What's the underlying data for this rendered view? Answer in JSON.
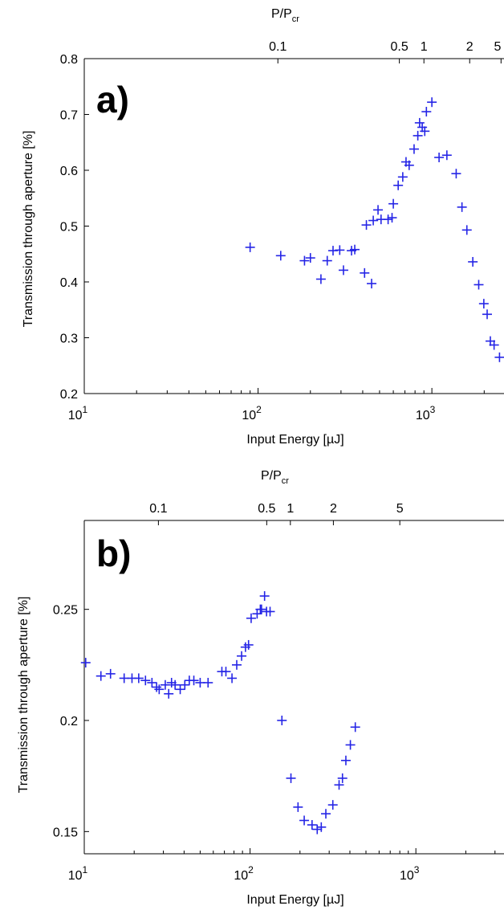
{
  "colors": {
    "marker": "#2525e6",
    "axis": "#000000",
    "background": "#ffffff"
  },
  "chart_data": [
    {
      "type": "scatter",
      "panel_label": "a)",
      "xlabel": "Input Energy [µJ]",
      "ylabel": "Transmission through aperture [%]",
      "top_axis_label_main": "P/P",
      "top_axis_label_sub": "cr",
      "x_scale": "log",
      "xlim": [
        10,
        2600
      ],
      "ylim": [
        0.2,
        0.8
      ],
      "x_ticks": [
        {
          "value": 10,
          "base": "10",
          "exp": "1"
        },
        {
          "value": 100,
          "base": "10",
          "exp": "2"
        },
        {
          "value": 1000,
          "base": "10",
          "exp": "3"
        }
      ],
      "y_ticks": [
        "0.2",
        "0.3",
        "0.4",
        "0.5",
        "0.6",
        "0.7",
        "0.8"
      ],
      "top_ticks": [
        {
          "label": "0.1",
          "energy": 130
        },
        {
          "label": "0.5",
          "energy": 650
        },
        {
          "label": "1",
          "energy": 900
        },
        {
          "label": "2",
          "energy": 1650
        },
        {
          "label": "5",
          "energy": 2500
        }
      ],
      "grid": false,
      "series": [
        {
          "marker": "+",
          "points": [
            [
              90,
              0.462
            ],
            [
              135,
              0.447
            ],
            [
              185,
              0.438
            ],
            [
              200,
              0.443
            ],
            [
              230,
              0.405
            ],
            [
              250,
              0.438
            ],
            [
              270,
              0.456
            ],
            [
              295,
              0.457
            ],
            [
              310,
              0.421
            ],
            [
              345,
              0.456
            ],
            [
              360,
              0.458
            ],
            [
              410,
              0.416
            ],
            [
              450,
              0.397
            ],
            [
              420,
              0.502
            ],
            [
              460,
              0.51
            ],
            [
              490,
              0.529
            ],
            [
              510,
              0.512
            ],
            [
              560,
              0.512
            ],
            [
              590,
              0.515
            ],
            [
              600,
              0.54
            ],
            [
              640,
              0.573
            ],
            [
              680,
              0.588
            ],
            [
              710,
              0.615
            ],
            [
              740,
              0.609
            ],
            [
              790,
              0.638
            ],
            [
              830,
              0.662
            ],
            [
              850,
              0.685
            ],
            [
              880,
              0.677
            ],
            [
              910,
              0.67
            ],
            [
              930,
              0.705
            ],
            [
              1000,
              0.722
            ],
            [
              1100,
              0.623
            ],
            [
              1220,
              0.627
            ],
            [
              1380,
              0.594
            ],
            [
              1490,
              0.534
            ],
            [
              1590,
              0.493
            ],
            [
              1720,
              0.436
            ],
            [
              1860,
              0.395
            ],
            [
              1990,
              0.361
            ],
            [
              2080,
              0.342
            ],
            [
              2170,
              0.294
            ],
            [
              2280,
              0.287
            ],
            [
              2450,
              0.265
            ]
          ]
        }
      ]
    },
    {
      "type": "scatter",
      "panel_label": "b)",
      "xlabel": "Input Energy [µJ]",
      "ylabel": "Transmission through aperture [%]",
      "top_axis_label_main": "P/P",
      "top_axis_label_sub": "cr",
      "x_scale": "log",
      "xlim": [
        10,
        3400
      ],
      "ylim": [
        0.14,
        0.29
      ],
      "x_ticks": [
        {
          "value": 10,
          "base": "10",
          "exp": "1"
        },
        {
          "value": 100,
          "base": "10",
          "exp": "2"
        },
        {
          "value": 1000,
          "base": "10",
          "exp": "3"
        }
      ],
      "y_ticks": [
        "0.15",
        "0.2",
        "0.25"
      ],
      "top_ticks": [
        {
          "label": "0.1",
          "energy": 28
        },
        {
          "label": "0.5",
          "energy": 126
        },
        {
          "label": "1",
          "energy": 175
        },
        {
          "label": "2",
          "energy": 318
        },
        {
          "label": "5",
          "energy": 800
        }
      ],
      "grid": false,
      "series": [
        {
          "marker": "+",
          "points": [
            [
              10.2,
              0.226
            ],
            [
              12.6,
              0.22
            ],
            [
              14.4,
              0.221
            ],
            [
              17.4,
              0.219
            ],
            [
              19.4,
              0.219
            ],
            [
              21.3,
              0.219
            ],
            [
              23.4,
              0.218
            ],
            [
              25.6,
              0.217
            ],
            [
              27.3,
              0.215
            ],
            [
              28.3,
              0.214
            ],
            [
              30.8,
              0.216
            ],
            [
              32.3,
              0.212
            ],
            [
              33.6,
              0.217
            ],
            [
              35.3,
              0.216
            ],
            [
              37.9,
              0.214
            ],
            [
              40.4,
              0.216
            ],
            [
              43.0,
              0.218
            ],
            [
              45.8,
              0.218
            ],
            [
              50.0,
              0.217
            ],
            [
              55.8,
              0.217
            ],
            [
              67.6,
              0.222
            ],
            [
              71.5,
              0.222
            ],
            [
              77.8,
              0.219
            ],
            [
              83.1,
              0.225
            ],
            [
              88.9,
              0.229
            ],
            [
              93.8,
              0.233
            ],
            [
              97.9,
              0.234
            ],
            [
              101.5,
              0.246
            ],
            [
              110.3,
              0.248
            ],
            [
              115.3,
              0.25
            ],
            [
              117.2,
              0.25
            ],
            [
              122.3,
              0.256
            ],
            [
              125.7,
              0.249
            ],
            [
              132.0,
              0.249
            ],
            [
              155.6,
              0.2
            ],
            [
              176.4,
              0.174
            ],
            [
              194.6,
              0.161
            ],
            [
              212.1,
              0.155
            ],
            [
              236.5,
              0.153
            ],
            [
              254.1,
              0.151
            ],
            [
              268.8,
              0.152
            ],
            [
              286.4,
              0.158
            ],
            [
              315.6,
              0.162
            ],
            [
              344.2,
              0.171
            ],
            [
              360.8,
              0.174
            ],
            [
              378.2,
              0.182
            ],
            [
              402.7,
              0.189
            ],
            [
              431.1,
              0.197
            ]
          ]
        }
      ]
    }
  ]
}
